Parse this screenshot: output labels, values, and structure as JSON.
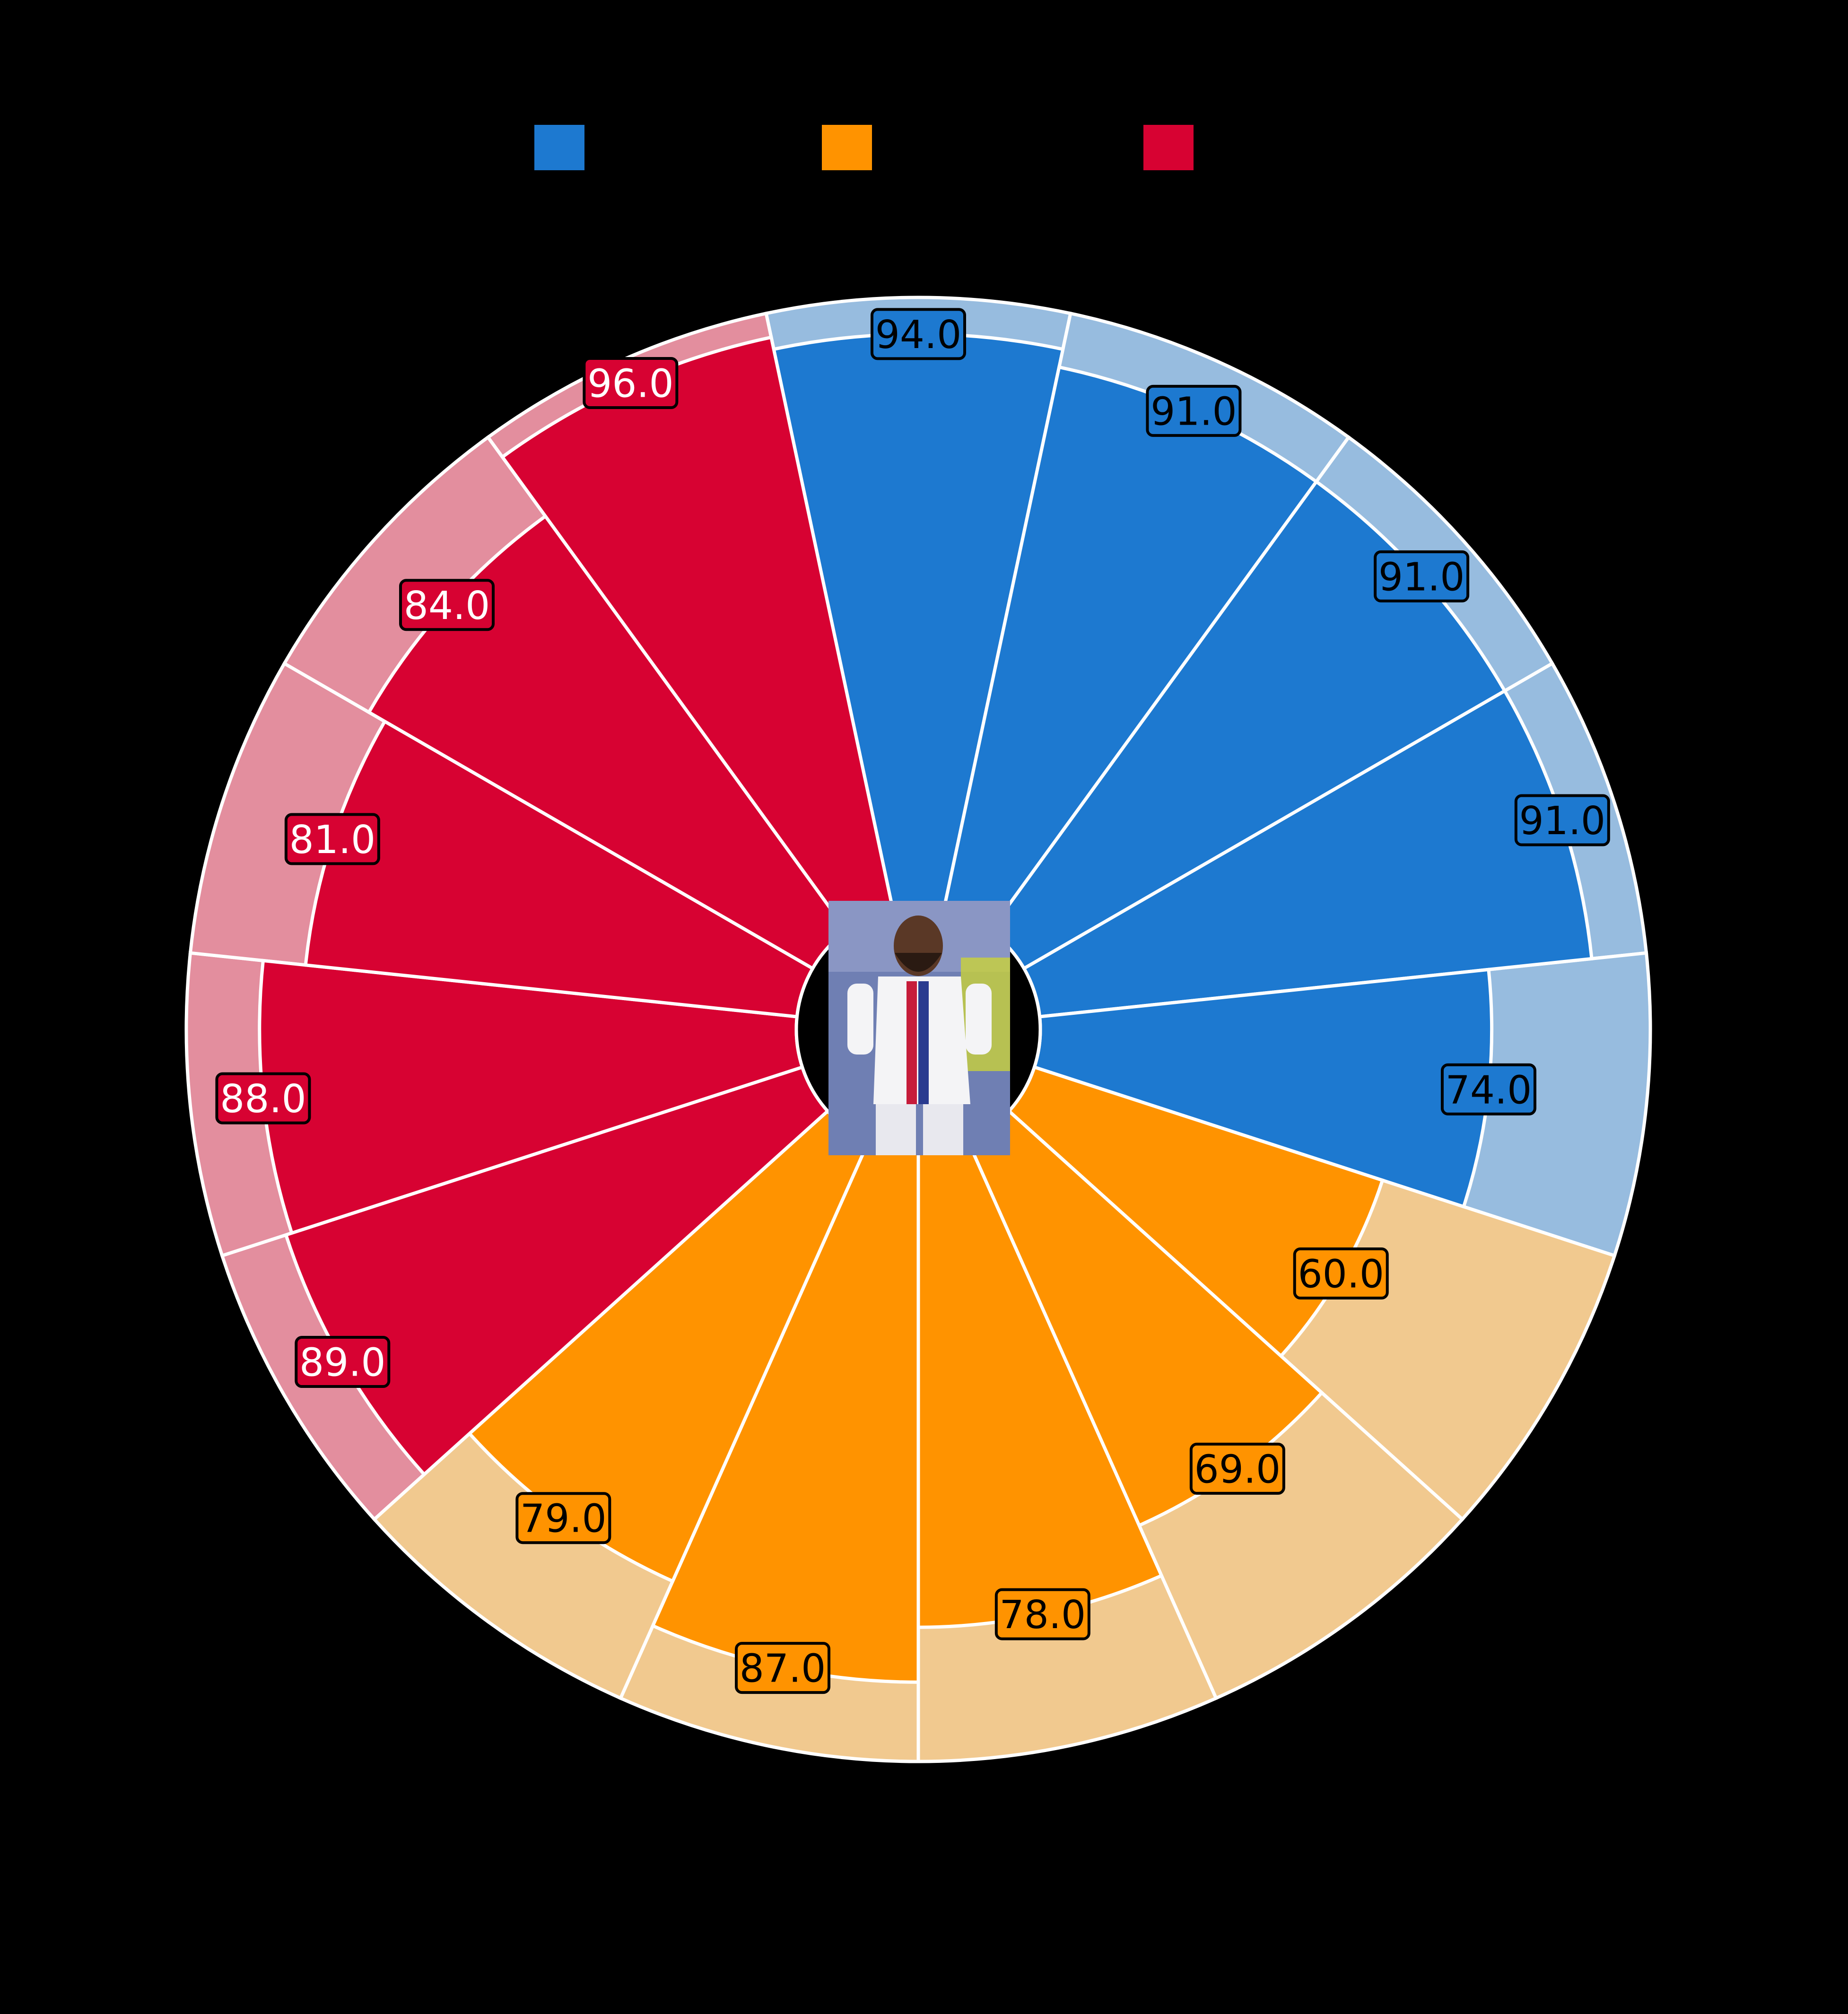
{
  "chart_data": {
    "type": "pizza",
    "value_range": [
      0,
      100
    ],
    "legend": [
      {
        "color": "#1d79d0",
        "label": ""
      },
      {
        "color": "#ff9300",
        "label": ""
      },
      {
        "color": "#d70232",
        "label": ""
      }
    ],
    "series": [
      {
        "value": 94.0,
        "label": "94.0",
        "group": "blue"
      },
      {
        "value": 91.0,
        "label": "91.0",
        "group": "blue"
      },
      {
        "value": 91.0,
        "label": "91.0",
        "group": "blue"
      },
      {
        "value": 91.0,
        "label": "91.0",
        "group": "blue"
      },
      {
        "value": 74.0,
        "label": "74.0",
        "group": "blue"
      },
      {
        "value": 60.0,
        "label": "60.0",
        "group": "orange"
      },
      {
        "value": 69.0,
        "label": "69.0",
        "group": "orange"
      },
      {
        "value": 78.0,
        "label": "78.0",
        "group": "orange"
      },
      {
        "value": 87.0,
        "label": "87.0",
        "group": "orange"
      },
      {
        "value": 79.0,
        "label": "79.0",
        "group": "orange"
      },
      {
        "value": 89.0,
        "label": "89.0",
        "group": "red"
      },
      {
        "value": 88.0,
        "label": "88.0",
        "group": "red"
      },
      {
        "value": 81.0,
        "label": "81.0",
        "group": "red"
      },
      {
        "value": 84.0,
        "label": "84.0",
        "group": "red"
      },
      {
        "value": 96.0,
        "label": "96.0",
        "group": "red"
      }
    ],
    "colors": {
      "blue": "#1d79d0",
      "blue_bg": "#97bcdf",
      "orange": "#ff9300",
      "orange_bg": "#f1c98f",
      "red": "#d70232",
      "red_bg": "#e38e9e",
      "background": "#000000",
      "slice_edge": "#ffffff",
      "label_text_dark": "#000000",
      "label_text_light": "#ffffff"
    },
    "center_image": "player-photo"
  }
}
